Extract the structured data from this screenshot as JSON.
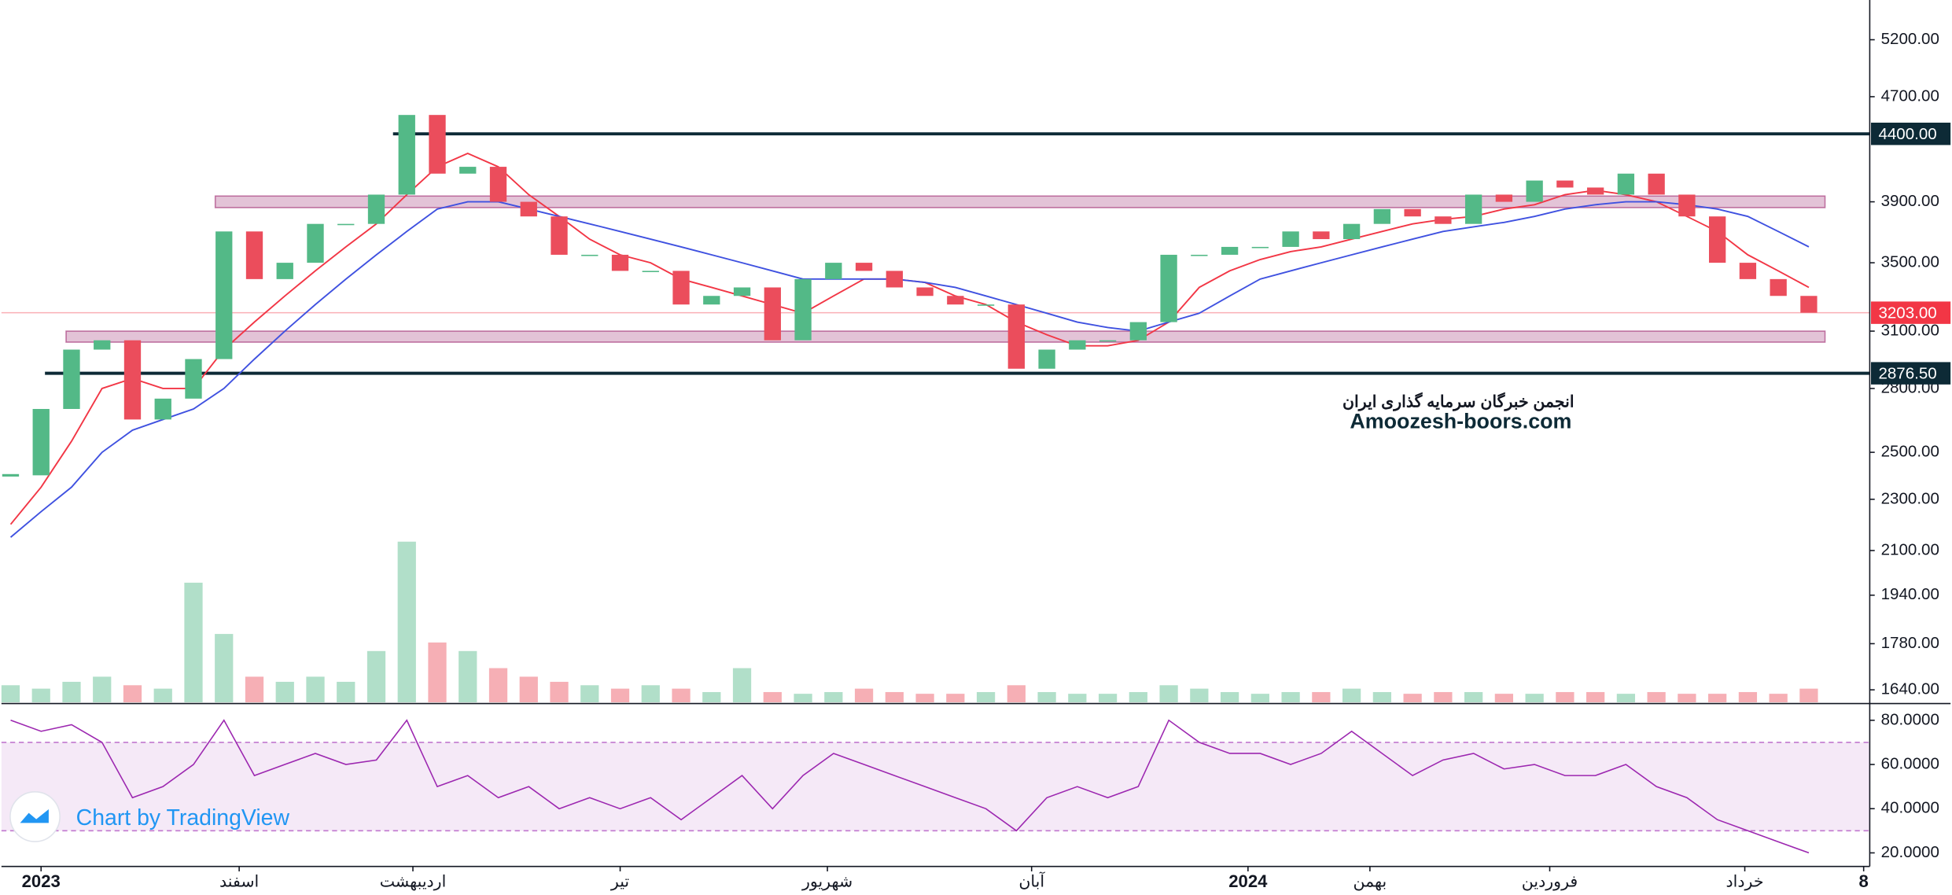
{
  "chart_data": {
    "type": "candlestick",
    "log_scale": true,
    "xlim": [
      -0.3,
      61
    ],
    "ylim": [
      1604,
      5580
    ],
    "yticks": [
      {
        "value": 5200,
        "label": "5200.00"
      },
      {
        "value": 4700,
        "label": "4700.00"
      },
      {
        "value": 3900,
        "label": "3900.00"
      },
      {
        "value": 3500,
        "label": "3500.00"
      },
      {
        "value": 3100,
        "label": "3100.00"
      },
      {
        "value": 2800,
        "label": "2800.00"
      },
      {
        "value": 2500,
        "label": "2500.00"
      },
      {
        "value": 2300,
        "label": "2300.00"
      },
      {
        "value": 2100,
        "label": "2100.00"
      },
      {
        "value": 1940,
        "label": "1940.00"
      },
      {
        "value": 1780,
        "label": "1780.00"
      },
      {
        "value": 1640,
        "label": "1640.00"
      }
    ],
    "xticks": [
      {
        "value": 1.0,
        "label": "2023"
      },
      {
        "value": 7.5,
        "label": "اسفند"
      },
      {
        "value": 13.2,
        "label": "اردیبهشت"
      },
      {
        "value": 20.0,
        "label": "تیر"
      },
      {
        "value": 26.8,
        "label": "شهریور"
      },
      {
        "value": 33.5,
        "label": "آبان"
      },
      {
        "value": 40.6,
        "label": "2024"
      },
      {
        "value": 44.6,
        "label": "بهمن"
      },
      {
        "value": 50.5,
        "label": "فروردین"
      },
      {
        "value": 56.9,
        "label": "خرداد"
      },
      {
        "value": 60.8,
        "label": "8"
      }
    ],
    "up_color": "#53b987",
    "down_color": "#eb4d5c",
    "closes": [
      2400,
      2700,
      3000,
      3050,
      2650,
      2750,
      2950,
      3700,
      3400,
      3500,
      3750,
      3750,
      3950,
      4550,
      4100,
      4150,
      3900,
      3800,
      3550,
      3550,
      3450,
      3450,
      3250,
      3300,
      3350,
      3050,
      3400,
      3500,
      3450,
      3350,
      3300,
      3250,
      3250,
      2900,
      3000,
      3050,
      3050,
      3150,
      3550,
      3550,
      3600,
      3600,
      3700,
      3650,
      3750,
      3850,
      3800,
      3750,
      3950,
      3900,
      4050,
      4000,
      3950,
      4100,
      3950,
      3800,
      3500,
      3400,
      3300,
      3203
    ],
    "moving_averages": [
      {
        "color": "#f23645",
        "values": [
          2200,
          2350,
          2550,
          2800,
          2850,
          2800,
          2800,
          3000,
          3150,
          3300,
          3450,
          3600,
          3750,
          3950,
          4150,
          4250,
          4150,
          3950,
          3800,
          3650,
          3550,
          3500,
          3400,
          3350,
          3300,
          3250,
          3200,
          3300,
          3400,
          3400,
          3380,
          3300,
          3250,
          3150,
          3080,
          3020,
          3020,
          3050,
          3150,
          3350,
          3450,
          3520,
          3570,
          3600,
          3650,
          3700,
          3750,
          3780,
          3800,
          3850,
          3880,
          3950,
          3980,
          3950,
          3900,
          3800,
          3700,
          3550,
          3450,
          3350
        ]
      },
      {
        "color": "#3f51e0",
        "values": [
          2150,
          2250,
          2350,
          2500,
          2600,
          2650,
          2700,
          2800,
          2950,
          3100,
          3250,
          3400,
          3550,
          3700,
          3850,
          3900,
          3900,
          3850,
          3800,
          3750,
          3700,
          3650,
          3600,
          3550,
          3500,
          3450,
          3400,
          3400,
          3400,
          3400,
          3380,
          3350,
          3300,
          3250,
          3200,
          3150,
          3120,
          3100,
          3150,
          3200,
          3300,
          3400,
          3450,
          3500,
          3550,
          3600,
          3650,
          3700,
          3730,
          3760,
          3800,
          3850,
          3880,
          3900,
          3900,
          3880,
          3850,
          3800,
          3700,
          3600
        ]
      }
    ],
    "levels": [
      {
        "value": 4400,
        "label": "4400.00",
        "color": "#0d2a36"
      },
      {
        "value": 2876.5,
        "label": "2876.50",
        "color": "#0d2a36"
      }
    ],
    "last_price": {
      "value": 3203,
      "label": "3203.00",
      "color": "#f23645"
    },
    "zones": [
      [
        3860,
        3940
      ],
      [
        3040,
        3100
      ]
    ],
    "volume": {
      "lim": [
        0,
        120
      ],
      "values": [
        10,
        8,
        12,
        15,
        10,
        8,
        70,
        40,
        15,
        12,
        15,
        12,
        30,
        94,
        35,
        30,
        20,
        15,
        12,
        10,
        8,
        10,
        8,
        6,
        20,
        6,
        5,
        6,
        8,
        6,
        5,
        5,
        6,
        10,
        6,
        5,
        5,
        6,
        10,
        8,
        6,
        5,
        6,
        6,
        8,
        6,
        5,
        6,
        6,
        5,
        5,
        6,
        6,
        5,
        6,
        5,
        5,
        6,
        5,
        8
      ]
    },
    "rsi": {
      "color": "#9c27b0",
      "ylim": [
        15,
        87
      ],
      "band": [
        30,
        70
      ],
      "yticks": [
        {
          "value": 80,
          "label": "80.0000"
        },
        {
          "value": 60,
          "label": "60.0000"
        },
        {
          "value": 40,
          "label": "40.0000"
        },
        {
          "value": 20,
          "label": "20.0000"
        }
      ],
      "values": [
        80,
        75,
        78,
        70,
        45,
        50,
        60,
        80,
        55,
        60,
        65,
        60,
        62,
        80,
        50,
        55,
        45,
        50,
        40,
        45,
        40,
        45,
        35,
        45,
        55,
        40,
        55,
        65,
        60,
        55,
        50,
        45,
        40,
        30,
        45,
        50,
        45,
        50,
        80,
        70,
        65,
        65,
        60,
        65,
        75,
        65,
        55,
        62,
        65,
        58,
        60,
        55,
        55,
        60,
        50,
        45,
        35,
        30,
        25,
        20
      ]
    },
    "watermark": {
      "title": "انجمن خبرگان سرمایه گذاری ایران",
      "site": "Amoozesh-boors.com"
    },
    "branding": "Chart by TradingView"
  }
}
